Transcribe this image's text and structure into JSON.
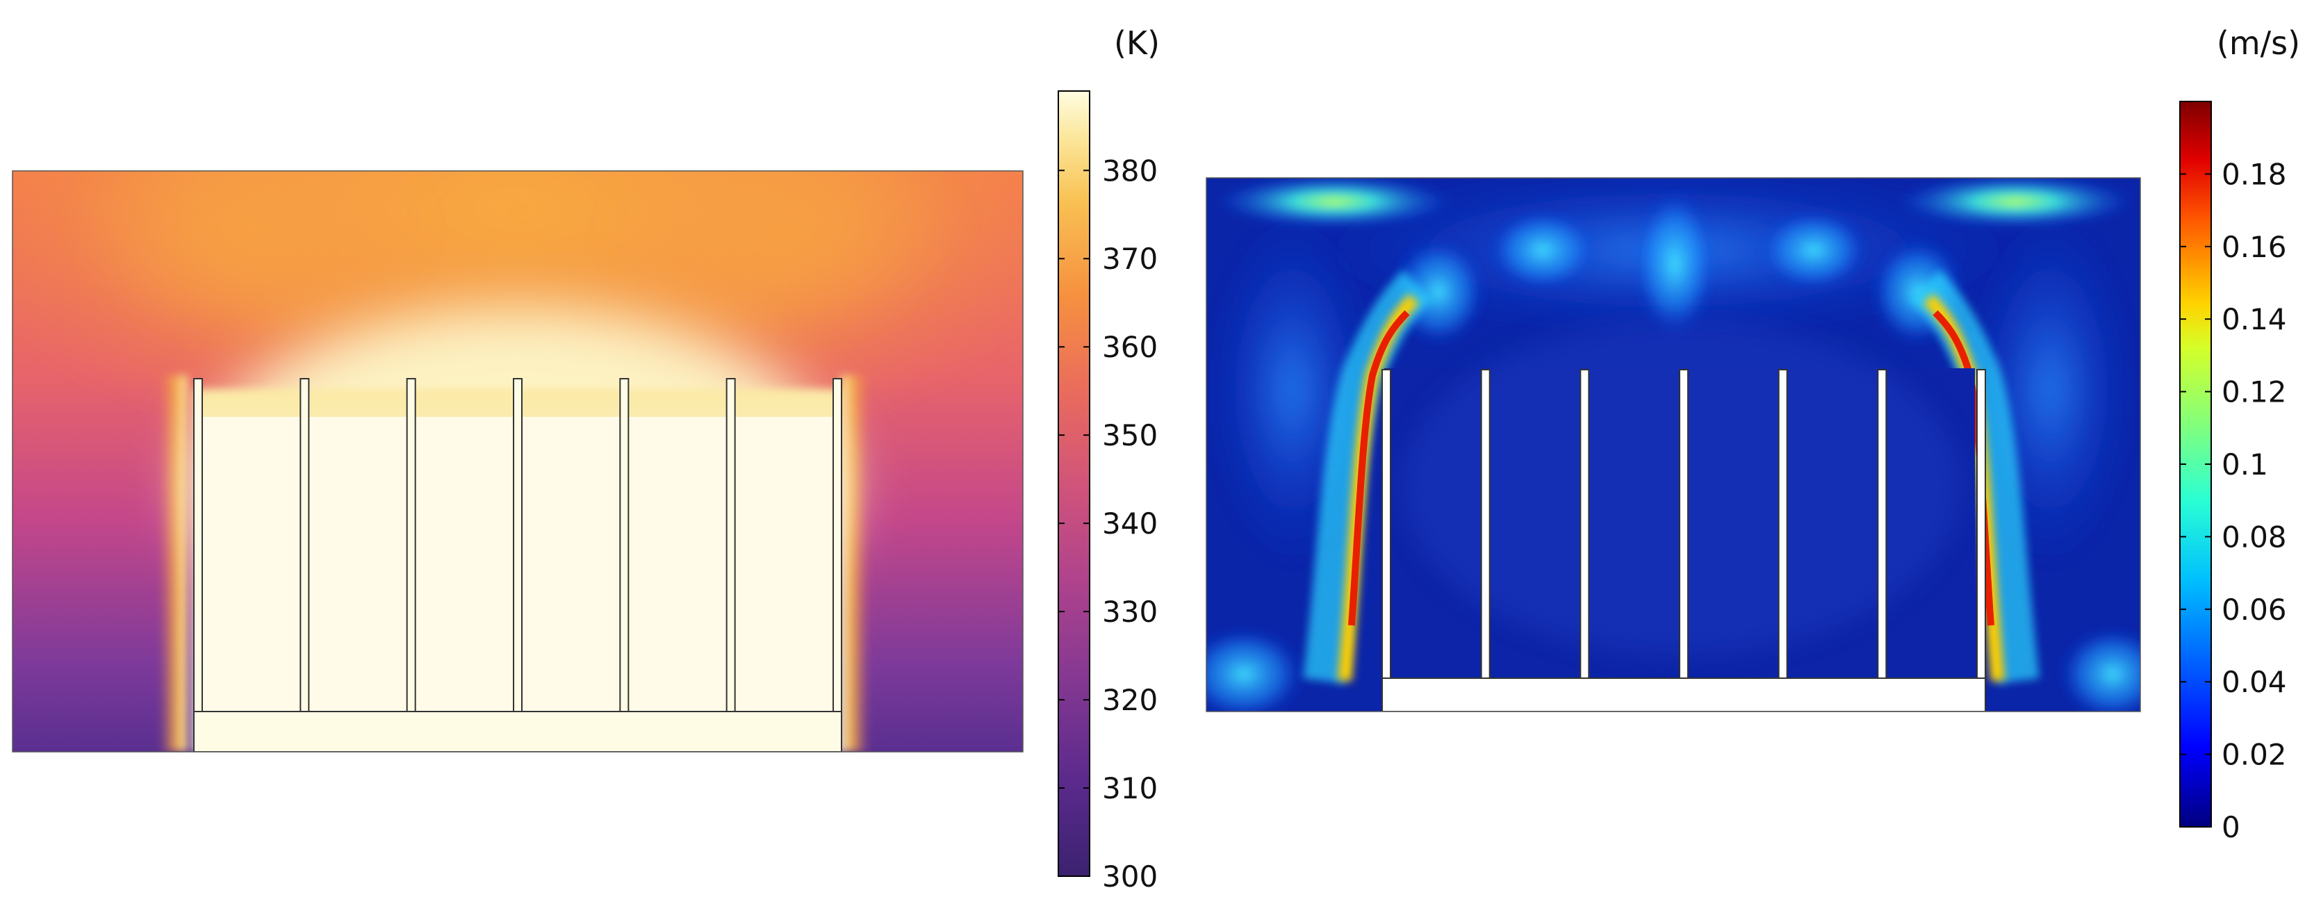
{
  "chart_data": [
    {
      "type": "heatmap",
      "quantity": "temperature",
      "unit_label": "(K)",
      "colormap": "plasma-like (dark purple to orange to pale yellow)",
      "colorbar": {
        "ticks": [
          300,
          310,
          320,
          330,
          340,
          350,
          360,
          370,
          380
        ],
        "tick_labels": [
          "300",
          "310",
          "320",
          "330",
          "340",
          "350",
          "360",
          "370",
          "380"
        ],
        "range": [
          300,
          389
        ],
        "stops": [
          "#3a1f6e",
          "#5a2a8a",
          "#8a3a8e",
          "#b8478a",
          "#dc5a6c",
          "#f07a4a",
          "#f8a83c",
          "#fbe08a",
          "#fffde0"
        ]
      },
      "field_description": "heat sink with base plate and 7 vertical fins; hot pale-yellow region around sink (~385 K) rising as warm plume; ambient edges near 310-320 K",
      "fin_count": 7
    },
    {
      "type": "heatmap",
      "quantity": "velocity magnitude",
      "unit_label": "(m/s)",
      "colormap": "jet (dark blue to cyan to yellow to red to dark red)",
      "colorbar": {
        "ticks": [
          0,
          0.02,
          0.04,
          0.06,
          0.08,
          0.1,
          0.12,
          0.14,
          0.16,
          0.18
        ],
        "tick_labels": [
          "0",
          "0.02",
          "0.04",
          "0.06",
          "0.08",
          "0.1",
          "0.12",
          "0.14",
          "0.16",
          "0.18"
        ],
        "range": [
          0,
          0.2
        ],
        "stops": [
          "#00007f",
          "#0000ff",
          "#007fff",
          "#00ffff",
          "#7fff7f",
          "#ffff00",
          "#ff7f00",
          "#ff0000",
          "#7f0000"
        ]
      },
      "field_description": "natural-convection flow field; peak velocity (~0.18 m/s, red) along outer side walls of sink; cyan jets along top edges and at bottom corners; low velocity (dark blue) between fins",
      "fin_count": 7
    }
  ]
}
